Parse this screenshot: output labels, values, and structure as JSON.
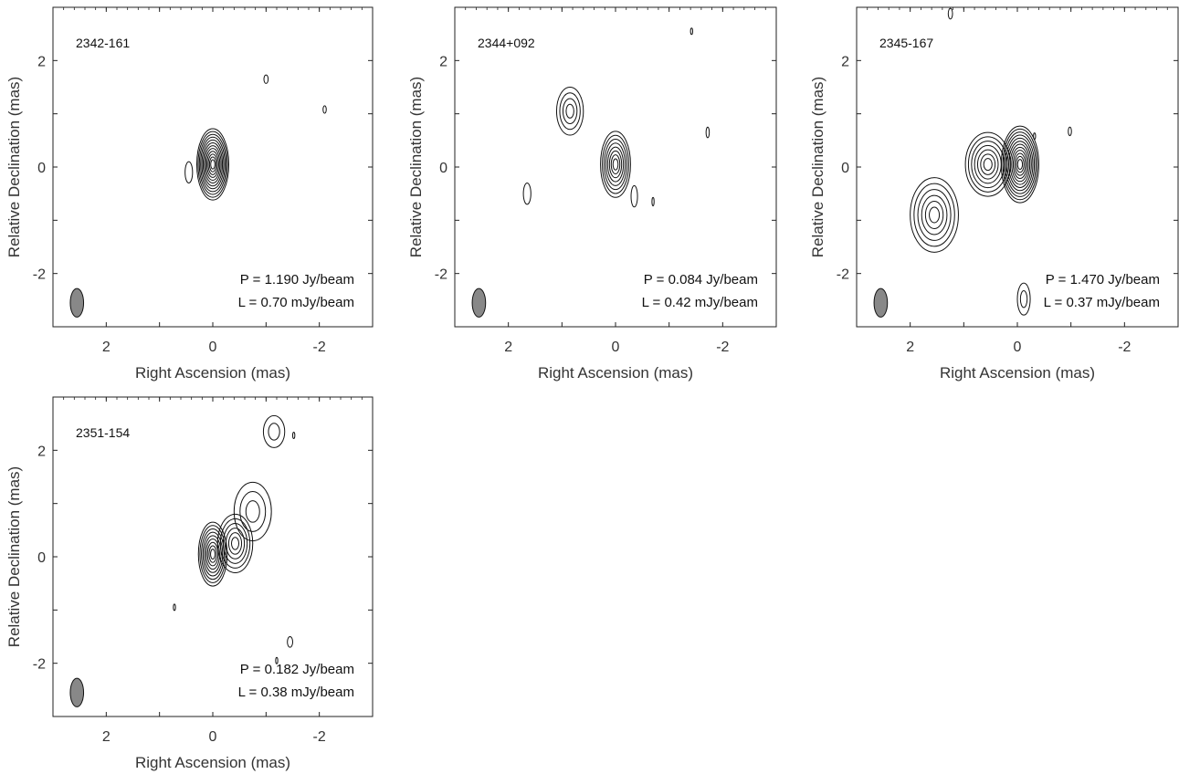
{
  "chart_data": [
    {
      "type": "contour",
      "source": "2342-161",
      "xlabel": "Right Ascension (mas)",
      "ylabel": "Relative Declination (mas)",
      "xlim": [
        3,
        -3
      ],
      "ylim": [
        -3,
        3
      ],
      "xticks": [
        2,
        0,
        -2
      ],
      "yticks": [
        2,
        0,
        -2
      ],
      "annotations": [
        "P = 1.190 Jy/beam",
        "L = 0.70 mJy/beam"
      ],
      "beam": {
        "x": 2.55,
        "y": -2.55,
        "major": 0.43,
        "minor": 0.2
      },
      "components": [
        {
          "x": 0.0,
          "y": 0.05,
          "rx": 0.3,
          "ry": 0.67,
          "levels": 12
        },
        {
          "x": 0.45,
          "y": -0.1,
          "rx": 0.07,
          "ry": 0.2,
          "levels": 1
        },
        {
          "x": -1.0,
          "y": 1.65,
          "rx": 0.04,
          "ry": 0.08,
          "levels": 1
        },
        {
          "x": -2.1,
          "y": 1.08,
          "rx": 0.03,
          "ry": 0.07,
          "levels": 1
        }
      ]
    },
    {
      "type": "contour",
      "source": "2344+092",
      "xlabel": "Right Ascension (mas)",
      "ylabel": "Relative Declination (mas)",
      "xlim": [
        3,
        -3
      ],
      "ylim": [
        -3,
        3
      ],
      "xticks": [
        2,
        0,
        -2
      ],
      "yticks": [
        2,
        0,
        -2
      ],
      "annotations": [
        "P = 0.084 Jy/beam",
        "L = 0.42 mJy/beam"
      ],
      "beam": {
        "x": 2.55,
        "y": -2.55,
        "major": 0.43,
        "minor": 0.2
      },
      "components": [
        {
          "x": 0.0,
          "y": 0.05,
          "rx": 0.28,
          "ry": 0.62,
          "levels": 8
        },
        {
          "x": 0.85,
          "y": 1.05,
          "rx": 0.25,
          "ry": 0.45,
          "levels": 4
        },
        {
          "x": 1.65,
          "y": -0.5,
          "rx": 0.07,
          "ry": 0.2,
          "levels": 1
        },
        {
          "x": -0.35,
          "y": -0.55,
          "rx": 0.06,
          "ry": 0.2,
          "levels": 1
        },
        {
          "x": -0.7,
          "y": -0.65,
          "rx": 0.02,
          "ry": 0.08,
          "levels": 1
        },
        {
          "x": -1.72,
          "y": 0.65,
          "rx": 0.03,
          "ry": 0.1,
          "levels": 1
        },
        {
          "x": -1.42,
          "y": 2.55,
          "rx": 0.02,
          "ry": 0.06,
          "levels": 1
        }
      ]
    },
    {
      "type": "contour",
      "source": "2345-167",
      "xlabel": "Right Ascension (mas)",
      "ylabel": "Relative Declination (mas)",
      "xlim": [
        3,
        -3
      ],
      "ylim": [
        -3,
        3
      ],
      "xticks": [
        2,
        0,
        -2
      ],
      "yticks": [
        2,
        0,
        -2
      ],
      "annotations": [
        "P = 1.470 Jy/beam",
        "L = 0.37 mJy/beam"
      ],
      "beam": {
        "x": 2.55,
        "y": -2.55,
        "major": 0.43,
        "minor": 0.2
      },
      "components": [
        {
          "x": -0.05,
          "y": 0.05,
          "rx": 0.35,
          "ry": 0.72,
          "levels": 12
        },
        {
          "x": 0.55,
          "y": 0.05,
          "rx": 0.42,
          "ry": 0.6,
          "levels": 7
        },
        {
          "x": 1.55,
          "y": -0.9,
          "rx": 0.45,
          "ry": 0.7,
          "levels": 6
        },
        {
          "x": -0.12,
          "y": -2.48,
          "rx": 0.12,
          "ry": 0.3,
          "levels": 2
        },
        {
          "x": -0.98,
          "y": 0.67,
          "rx": 0.03,
          "ry": 0.08,
          "levels": 1
        },
        {
          "x": 1.25,
          "y": 2.88,
          "rx": 0.04,
          "ry": 0.1,
          "levels": 1
        },
        {
          "x": -0.32,
          "y": 0.58,
          "rx": 0.02,
          "ry": 0.06,
          "levels": 1
        }
      ]
    },
    {
      "type": "contour",
      "source": "2351-154",
      "xlabel": "Right Ascension (mas)",
      "ylabel": "Relative Declination (mas)",
      "xlim": [
        3,
        -3
      ],
      "ylim": [
        -3,
        3
      ],
      "xticks": [
        2,
        0,
        -2
      ],
      "yticks": [
        2,
        0,
        -2
      ],
      "annotations": [
        "P = 0.182 Jy/beam",
        "L = 0.38 mJy/beam"
      ],
      "beam": {
        "x": 2.55,
        "y": -2.55,
        "major": 0.43,
        "minor": 0.2
      },
      "components": [
        {
          "x": 0.0,
          "y": 0.05,
          "rx": 0.27,
          "ry": 0.6,
          "levels": 9
        },
        {
          "x": -0.42,
          "y": 0.25,
          "rx": 0.33,
          "ry": 0.55,
          "levels": 6
        },
        {
          "x": -0.75,
          "y": 0.85,
          "rx": 0.35,
          "ry": 0.55,
          "levels": 3
        },
        {
          "x": -1.15,
          "y": 2.35,
          "rx": 0.2,
          "ry": 0.3,
          "levels": 2
        },
        {
          "x": -1.52,
          "y": 2.28,
          "rx": 0.02,
          "ry": 0.06,
          "levels": 1
        },
        {
          "x": -1.45,
          "y": -1.6,
          "rx": 0.05,
          "ry": 0.1,
          "levels": 1
        },
        {
          "x": 0.72,
          "y": -0.95,
          "rx": 0.02,
          "ry": 0.06,
          "levels": 1
        },
        {
          "x": -1.2,
          "y": -1.95,
          "rx": 0.02,
          "ry": 0.06,
          "levels": 1
        }
      ]
    }
  ]
}
